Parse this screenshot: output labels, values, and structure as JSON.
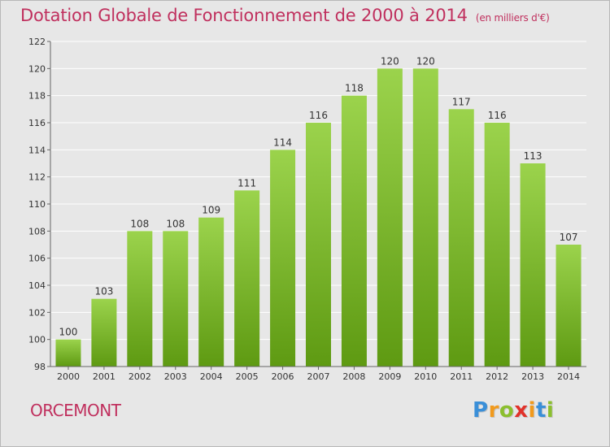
{
  "header": {
    "title": "Dotation Globale de Fonctionnement de 2000 à 2014",
    "subtitle": "(en milliers d'€)"
  },
  "footer": {
    "town": "ORCEMONT",
    "brand": [
      "P",
      "r",
      "o",
      "x",
      "i",
      "t",
      "i"
    ],
    "brand_colors": [
      "#3a8fd8",
      "#f19a1d",
      "#8bbf2e",
      "#e1322a",
      "#f19a1d",
      "#3a8fd8",
      "#8bbf2e"
    ]
  },
  "colors": {
    "bar_top": "#9bd34c",
    "bar_bottom": "#5e9a12",
    "grid": "#ffffff",
    "axis": "#666666",
    "title": "#c0305e"
  },
  "chart_data": {
    "type": "bar",
    "categories": [
      "2000",
      "2001",
      "2002",
      "2003",
      "2004",
      "2005",
      "2006",
      "2007",
      "2008",
      "2009",
      "2010",
      "2011",
      "2012",
      "2013",
      "2014"
    ],
    "values": [
      100,
      103,
      108,
      108,
      109,
      111,
      114,
      116,
      118,
      120,
      120,
      117,
      116,
      113,
      107
    ],
    "ylim": [
      98,
      122
    ],
    "yticks": [
      98,
      100,
      102,
      104,
      106,
      108,
      110,
      112,
      114,
      116,
      118,
      120,
      122
    ],
    "grid": true,
    "data_labels": true
  }
}
